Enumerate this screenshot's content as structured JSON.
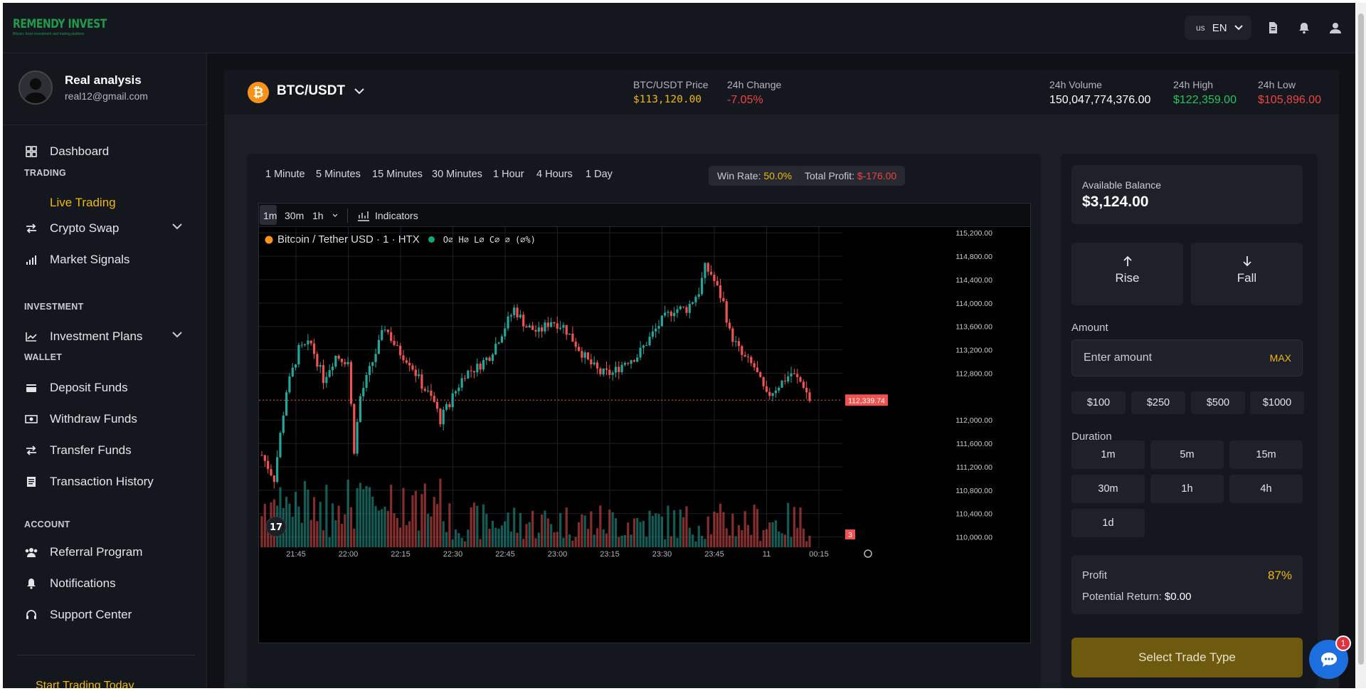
{
  "brand": {
    "logo_text": "REMENDY INVEST",
    "tagline": "Bitcoin, forex investment and trading platform"
  },
  "topbar": {
    "flag": "us",
    "language": "EN"
  },
  "user": {
    "name": "Real analysis",
    "email": "real12@gmail.com"
  },
  "sidebar": {
    "dashboard": "Dashboard",
    "section_trading": "TRADING",
    "live_trading": "Live Trading",
    "crypto_swap": "Crypto Swap",
    "market_signals": "Market Signals",
    "section_investment": "INVESTMENT",
    "investment_plans": "Investment Plans",
    "section_wallet": "WALLET",
    "deposit_funds": "Deposit Funds",
    "withdraw_funds": "Withdraw Funds",
    "transfer_funds": "Transfer Funds",
    "transaction_history": "Transaction History",
    "section_account": "ACCOUNT",
    "referral_program": "Referral Program",
    "notifications": "Notifications",
    "support_center": "Support Center",
    "cta": "Start Trading Today"
  },
  "ticker": {
    "pair": "BTC/USDT",
    "price_label": "BTC/USDT Price",
    "price": "$113,120.00",
    "change_label": "24h Change",
    "change": "-7.05%",
    "volume_label": "24h Volume",
    "volume": "150,047,774,376.00",
    "high_label": "24h High",
    "high": "$122,359.00",
    "low_label": "24h Low",
    "low": "$105,896.00"
  },
  "timeframes": [
    "1 Minute",
    "5 Minutes",
    "15 Minutes",
    "30 Minutes",
    "1 Hour",
    "4 Hours",
    "1 Day"
  ],
  "stats": {
    "win_rate_label": "Win Rate:",
    "win_rate": "50.0%",
    "total_profit_label": "Total Profit:",
    "total_profit": "$-176.00"
  },
  "tv": {
    "intervals": [
      "1m",
      "30m",
      "1h"
    ],
    "indicators": "Indicators",
    "symbol": "Bitcoin / Tether USD · 1 · HTX",
    "ohlc": "O∅ H∅ L∅ C∅ ∅ (∅%)",
    "last_price": "112,339.74",
    "volume_badge": "3"
  },
  "colors": {
    "up": "#26a69a",
    "down": "#ef5350",
    "accent": "#f0b90b",
    "positive": "#22c55e",
    "negative": "#ef4444"
  },
  "chart_data": {
    "type": "candlestick",
    "series": [
      {
        "name": "Bitcoin / Tether USD · 1 · HTX"
      }
    ],
    "x_ticks": [
      "21:45",
      "22:00",
      "22:15",
      "22:30",
      "22:45",
      "23:00",
      "23:15",
      "23:30",
      "23:45",
      "11",
      "00:15"
    ],
    "y_ticks": [
      "115,200.00",
      "114,800.00",
      "114,400.00",
      "114,000.00",
      "113,600.00",
      "113,200.00",
      "112,800.00",
      "112,000.00",
      "111,600.00",
      "111,200.00",
      "110,800.00",
      "110,400.00",
      "110,000.00"
    ],
    "ylim": [
      109800,
      115300
    ],
    "close_path": [
      [
        0,
        111400
      ],
      [
        4,
        111000
      ],
      [
        8,
        112500
      ],
      [
        12,
        113200
      ],
      [
        16,
        113300
      ],
      [
        20,
        112700
      ],
      [
        24,
        113100
      ],
      [
        28,
        113000
      ],
      [
        30,
        111500
      ],
      [
        32,
        112400
      ],
      [
        36,
        113000
      ],
      [
        40,
        113600
      ],
      [
        44,
        113200
      ],
      [
        48,
        113000
      ],
      [
        52,
        112600
      ],
      [
        56,
        112300
      ],
      [
        58,
        112000
      ],
      [
        62,
        112400
      ],
      [
        66,
        112800
      ],
      [
        70,
        112900
      ],
      [
        74,
        113100
      ],
      [
        78,
        113500
      ],
      [
        82,
        113900
      ],
      [
        86,
        113600
      ],
      [
        90,
        113500
      ],
      [
        94,
        113700
      ],
      [
        98,
        113600
      ],
      [
        102,
        113300
      ],
      [
        106,
        113000
      ],
      [
        110,
        112800
      ],
      [
        114,
        112800
      ],
      [
        118,
        113000
      ],
      [
        122,
        113100
      ],
      [
        126,
        113400
      ],
      [
        130,
        113700
      ],
      [
        134,
        113900
      ],
      [
        138,
        113900
      ],
      [
        142,
        114200
      ],
      [
        144,
        114600
      ],
      [
        146,
        114500
      ],
      [
        150,
        114000
      ],
      [
        152,
        113500
      ],
      [
        156,
        113100
      ],
      [
        160,
        112900
      ],
      [
        164,
        112400
      ],
      [
        168,
        112600
      ],
      [
        172,
        112800
      ],
      [
        176,
        112600
      ],
      [
        178,
        112340
      ]
    ],
    "volume_range": [
      0,
      1
    ]
  },
  "trade": {
    "balance_label": "Available Balance",
    "balance": "$3,124.00",
    "rise": "Rise",
    "fall": "Fall",
    "amount_label": "Amount",
    "amount_placeholder": "Enter amount",
    "max": "MAX",
    "presets": [
      "$100",
      "$250",
      "$500",
      "$1000"
    ],
    "duration_label": "Duration",
    "durations": [
      "1m",
      "5m",
      "15m",
      "30m",
      "1h",
      "4h",
      "1d"
    ],
    "profit_label": "Profit",
    "profit_pct": "87%",
    "potential_label": "Potential Return:",
    "potential_value": "$0.00",
    "select": "Select Trade Type"
  },
  "chat_badge": "1"
}
